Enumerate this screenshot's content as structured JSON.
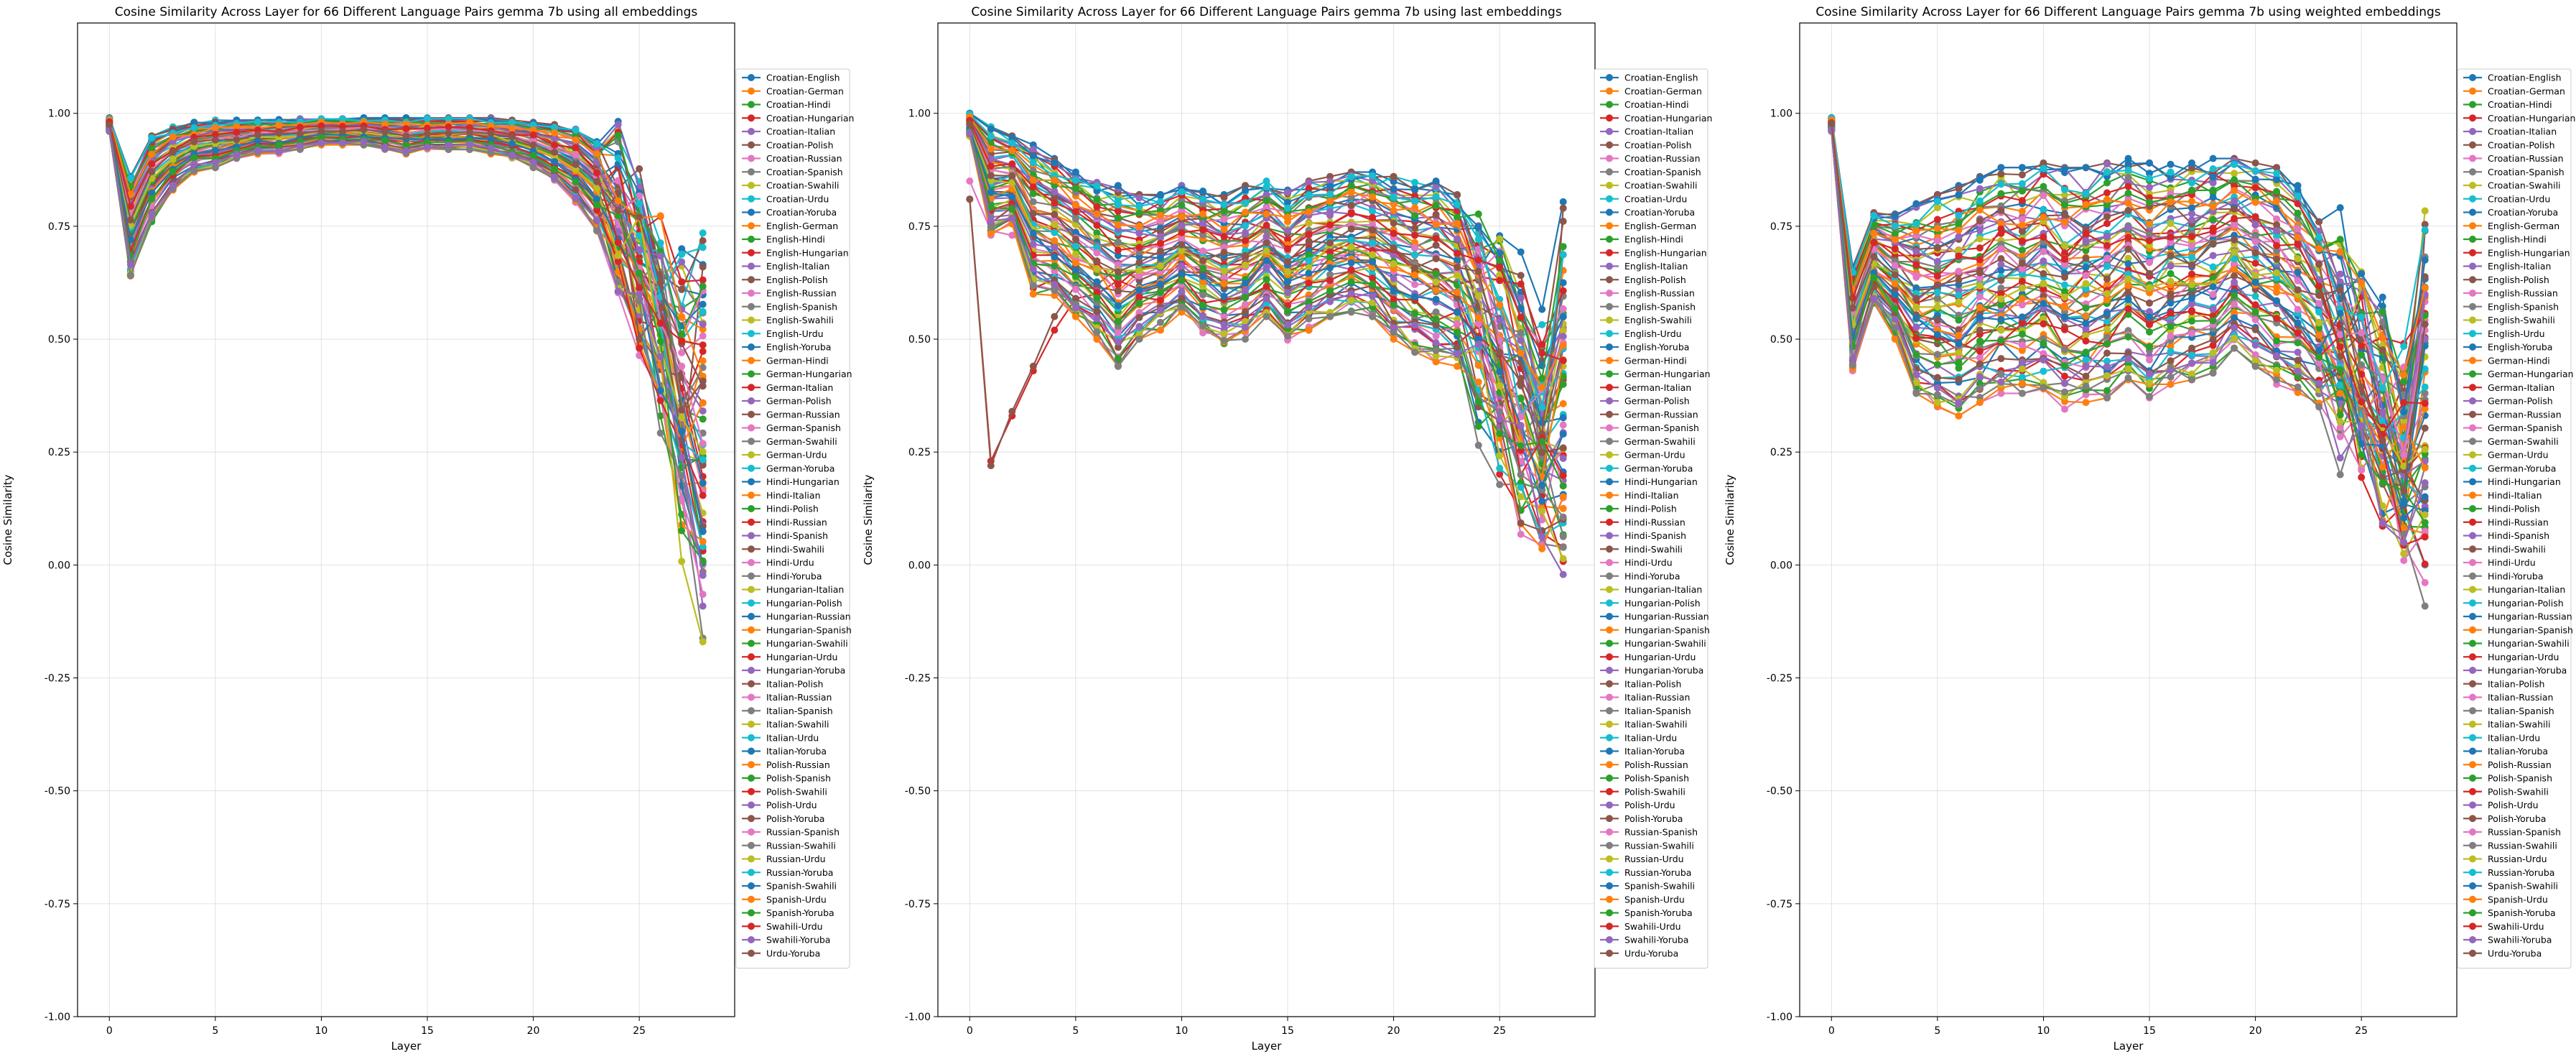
{
  "pair_names": [
    "Croatian-English",
    "Croatian-German",
    "Croatian-Hindi",
    "Croatian-Hungarian",
    "Croatian-Italian",
    "Croatian-Polish",
    "Croatian-Russian",
    "Croatian-Spanish",
    "Croatian-Swahili",
    "Croatian-Urdu",
    "Croatian-Yoruba",
    "English-German",
    "English-Hindi",
    "English-Hungarian",
    "English-Italian",
    "English-Polish",
    "English-Russian",
    "English-Spanish",
    "English-Swahili",
    "English-Urdu",
    "English-Yoruba",
    "German-Hindi",
    "German-Hungarian",
    "German-Italian",
    "German-Polish",
    "German-Russian",
    "German-Spanish",
    "German-Swahili",
    "German-Urdu",
    "German-Yoruba",
    "Hindi-Hungarian",
    "Hindi-Italian",
    "Hindi-Polish",
    "Hindi-Russian",
    "Hindi-Spanish",
    "Hindi-Swahili",
    "Hindi-Urdu",
    "Hindi-Yoruba",
    "Hungarian-Italian",
    "Hungarian-Polish",
    "Hungarian-Russian",
    "Hungarian-Spanish",
    "Hungarian-Swahili",
    "Hungarian-Urdu",
    "Hungarian-Yoruba",
    "Italian-Polish",
    "Italian-Russian",
    "Italian-Spanish",
    "Italian-Swahili",
    "Italian-Urdu",
    "Italian-Yoruba",
    "Polish-Russian",
    "Polish-Spanish",
    "Polish-Swahili",
    "Polish-Urdu",
    "Polish-Yoruba",
    "Russian-Spanish",
    "Russian-Swahili",
    "Russian-Urdu",
    "Russian-Yoruba",
    "Spanish-Swahili",
    "Spanish-Urdu",
    "Spanish-Yoruba",
    "Swahili-Urdu",
    "Swahili-Yoruba",
    "Urdu-Yoruba"
  ],
  "palette": [
    "#1f77b4",
    "#ff7f0e",
    "#2ca02c",
    "#d62728",
    "#9467bd",
    "#8c564b",
    "#e377c2",
    "#7f7f7f",
    "#bcbd22",
    "#17becf"
  ],
  "chart_data": [
    {
      "type": "line",
      "title": "Cosine Similarity Across Layer for 66 Different Language Pairs gemma 7b using all embeddings",
      "xlabel": "Layer",
      "ylabel": "Cosine Similarity",
      "xlim": [
        -1.5,
        29.5
      ],
      "ylim": [
        -1.0,
        1.2
      ],
      "xticks": [
        0,
        5,
        10,
        15,
        20,
        25
      ],
      "yticks": [
        -1.0,
        -0.75,
        -0.5,
        -0.25,
        0.0,
        0.25,
        0.5,
        0.75,
        1.0
      ],
      "grid": true,
      "legend_position": "right-center",
      "x": [
        0,
        1,
        2,
        3,
        4,
        5,
        6,
        7,
        8,
        9,
        10,
        11,
        12,
        13,
        14,
        15,
        16,
        17,
        18,
        19,
        20,
        21,
        22,
        23,
        24,
        25,
        26,
        27,
        28
      ],
      "series_top": [
        0.99,
        0.86,
        0.95,
        0.97,
        0.98,
        0.985,
        0.985,
        0.985,
        0.986,
        0.988,
        0.99,
        0.99,
        0.99,
        0.99,
        0.99,
        0.99,
        0.99,
        0.99,
        0.99,
        0.985,
        0.98,
        0.975,
        0.97,
        0.94,
        0.88,
        0.79,
        0.7,
        0.62,
        0.67
      ],
      "series_bottom": [
        0.96,
        0.64,
        0.76,
        0.83,
        0.87,
        0.88,
        0.9,
        0.91,
        0.91,
        0.92,
        0.93,
        0.93,
        0.93,
        0.92,
        0.91,
        0.92,
        0.92,
        0.92,
        0.91,
        0.9,
        0.88,
        0.85,
        0.8,
        0.74,
        0.66,
        0.55,
        0.4,
        0.1,
        -0.1
      ],
      "series_outliers": [
        {
          "index": 5,
          "values": [
            0.98,
            0.75,
            0.9,
            0.94,
            0.96,
            0.97,
            0.97,
            0.975,
            0.975,
            0.98,
            0.98,
            0.98,
            0.98,
            0.98,
            0.98,
            0.98,
            0.98,
            0.98,
            0.975,
            0.97,
            0.96,
            0.94,
            0.9,
            0.84,
            0.7,
            0.52,
            0.37,
            0.23,
            0.66
          ]
        }
      ]
    },
    {
      "type": "line",
      "title": "Cosine Similarity Across Layer for 66 Different Language Pairs gemma 7b using last embeddings",
      "xlabel": "Layer",
      "ylabel": "Cosine Similarity",
      "xlim": [
        -1.5,
        29.5
      ],
      "ylim": [
        -1.0,
        1.2
      ],
      "xticks": [
        0,
        5,
        10,
        15,
        20,
        25
      ],
      "yticks": [
        -1.0,
        -0.75,
        -0.5,
        -0.25,
        0.0,
        0.25,
        0.5,
        0.75,
        1.0
      ],
      "grid": true,
      "legend_position": "right-center",
      "x": [
        0,
        1,
        2,
        3,
        4,
        5,
        6,
        7,
        8,
        9,
        10,
        11,
        12,
        13,
        14,
        15,
        16,
        17,
        18,
        19,
        20,
        21,
        22,
        23,
        24,
        25,
        26,
        27,
        28
      ],
      "series_top": [
        1.0,
        0.97,
        0.95,
        0.93,
        0.9,
        0.87,
        0.85,
        0.84,
        0.82,
        0.82,
        0.84,
        0.83,
        0.82,
        0.84,
        0.85,
        0.83,
        0.85,
        0.86,
        0.87,
        0.87,
        0.86,
        0.85,
        0.85,
        0.82,
        0.77,
        0.69,
        0.58,
        0.5,
        0.7
      ],
      "series_bottom": [
        0.95,
        0.73,
        0.75,
        0.6,
        0.59,
        0.55,
        0.5,
        0.44,
        0.5,
        0.52,
        0.56,
        0.51,
        0.49,
        0.5,
        0.55,
        0.49,
        0.52,
        0.55,
        0.56,
        0.55,
        0.5,
        0.47,
        0.45,
        0.44,
        0.35,
        0.25,
        0.15,
        0.08,
        0.03
      ],
      "series_outliers": [
        {
          "index": 5,
          "values": [
            0.81,
            0.22,
            0.34,
            0.44,
            0.55,
            0.62,
            0.62,
            0.66,
            0.63,
            0.65,
            0.7,
            0.68,
            0.66,
            0.68,
            0.7,
            0.68,
            0.69,
            0.7,
            0.72,
            0.73,
            0.7,
            0.67,
            0.65,
            0.6,
            0.5,
            0.4,
            0.25,
            0.1,
            0.79
          ]
        },
        {
          "index": 3,
          "values": [
            0.81,
            0.23,
            0.33,
            0.43,
            0.52,
            0.59,
            0.6,
            0.63,
            0.61,
            0.63,
            0.67,
            0.65,
            0.63,
            0.66,
            0.68,
            0.65,
            0.67,
            0.68,
            0.7,
            0.71,
            0.69,
            0.66,
            0.63,
            0.59,
            0.48,
            0.36,
            0.2,
            0.07,
            0.04
          ]
        },
        {
          "index": 6,
          "values": [
            0.85,
            0.74,
            0.73,
            0.7,
            0.69,
            0.68,
            0.66,
            0.65,
            0.64,
            0.65,
            0.66,
            0.66,
            0.65,
            0.66,
            0.67,
            0.66,
            0.67,
            0.68,
            0.69,
            0.7,
            0.69,
            0.66,
            0.64,
            0.6,
            0.5,
            0.38,
            0.25,
            0.1,
            0.31
          ]
        }
      ]
    },
    {
      "type": "line",
      "title": "Cosine Similarity Across Layer for 66 Different Language Pairs gemma 7b using weighted embeddings",
      "xlabel": "Layer",
      "ylabel": "Cosine Similarity",
      "xlim": [
        -1.5,
        29.5
      ],
      "ylim": [
        -1.0,
        1.2
      ],
      "xticks": [
        0,
        5,
        10,
        15,
        20,
        25
      ],
      "yticks": [
        -1.0,
        -0.75,
        -0.5,
        -0.25,
        0.0,
        0.25,
        0.5,
        0.75,
        1.0
      ],
      "grid": true,
      "legend_position": "right-center",
      "x": [
        0,
        1,
        2,
        3,
        4,
        5,
        6,
        7,
        8,
        9,
        10,
        11,
        12,
        13,
        14,
        15,
        16,
        17,
        18,
        19,
        20,
        21,
        22,
        23,
        24,
        25,
        26,
        27,
        28
      ],
      "series_top": [
        0.99,
        0.66,
        0.78,
        0.78,
        0.8,
        0.82,
        0.84,
        0.86,
        0.88,
        0.88,
        0.89,
        0.88,
        0.88,
        0.89,
        0.9,
        0.89,
        0.89,
        0.89,
        0.9,
        0.9,
        0.89,
        0.88,
        0.84,
        0.76,
        0.68,
        0.6,
        0.5,
        0.4,
        0.75
      ],
      "series_bottom": [
        0.96,
        0.43,
        0.58,
        0.5,
        0.38,
        0.35,
        0.33,
        0.36,
        0.38,
        0.38,
        0.39,
        0.34,
        0.36,
        0.37,
        0.41,
        0.37,
        0.4,
        0.41,
        0.42,
        0.48,
        0.44,
        0.4,
        0.38,
        0.35,
        0.3,
        0.22,
        0.15,
        0.05,
        0.0
      ],
      "series_outliers": [
        {
          "index": 9,
          "values": [
            0.98,
            0.5,
            0.58,
            0.55,
            0.5,
            0.56,
            0.55,
            0.6,
            0.63,
            0.66,
            0.67,
            0.66,
            0.67,
            0.68,
            0.7,
            0.68,
            0.69,
            0.7,
            0.71,
            0.72,
            0.7,
            0.66,
            0.6,
            0.5,
            0.4,
            0.3,
            0.2,
            0.12,
            0.0
          ]
        },
        {
          "index": 5,
          "values": [
            0.98,
            0.55,
            0.6,
            0.52,
            0.5,
            0.49,
            0.5,
            0.52,
            0.52,
            0.54,
            0.57,
            0.55,
            0.57,
            0.58,
            0.6,
            0.58,
            0.6,
            0.61,
            0.62,
            0.64,
            0.62,
            0.58,
            0.53,
            0.46,
            0.36,
            0.28,
            0.18,
            0.08,
            0.74
          ]
        }
      ]
    }
  ]
}
